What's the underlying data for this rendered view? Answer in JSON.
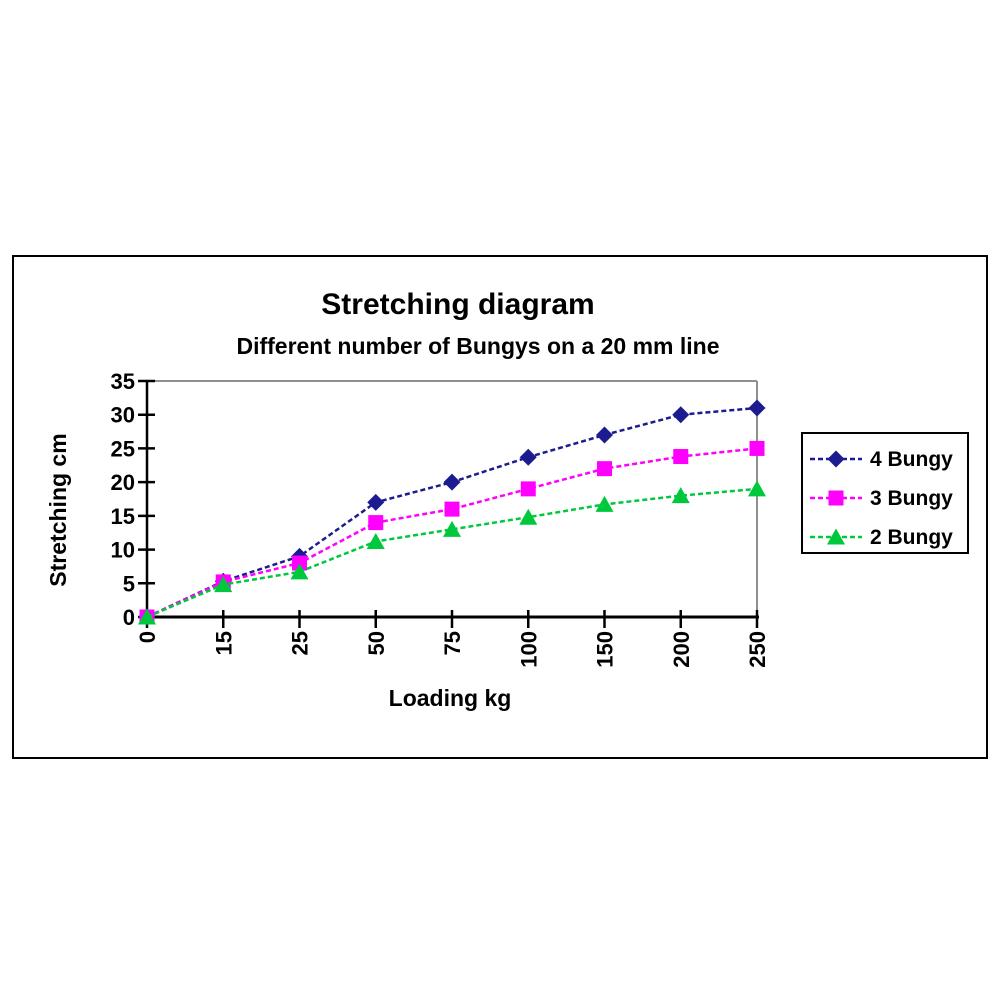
{
  "page": {
    "background": "#FFFFFF"
  },
  "chart_frame": {
    "border_color": "#000000"
  },
  "chart_data": {
    "type": "line",
    "title": "Stretching diagram",
    "subtitle": "Different number of Bungys on a 20 mm line",
    "xlabel": "Loading kg",
    "ylabel": "Stretching cm",
    "categories": [
      "0",
      "15",
      "25",
      "50",
      "75",
      "100",
      "150",
      "200",
      "250"
    ],
    "ylim": [
      0,
      35
    ],
    "y_ticks": [
      0,
      5,
      10,
      15,
      20,
      25,
      30,
      35
    ],
    "grid": false,
    "line_style": "dashed",
    "legend_position": "right",
    "colors": {
      "axis": "#000000",
      "plot_frame": "#8F8F8F",
      "legend_border": "#000000",
      "text": "#000000",
      "plot_background": "#FFFFFF"
    },
    "series": [
      {
        "name": "4 Bungy",
        "marker": "diamond",
        "color": "#1C1C90",
        "values": [
          0,
          5.3,
          9,
          17,
          20,
          23.7,
          27,
          30,
          31
        ]
      },
      {
        "name": "3 Bungy",
        "marker": "square",
        "color": "#FF00FF",
        "values": [
          0,
          5.2,
          8,
          14,
          16,
          19,
          22,
          23.8,
          25
        ]
      },
      {
        "name": "2 Bungy",
        "marker": "triangle",
        "color": "#00C83C",
        "values": [
          0,
          4.8,
          6.7,
          11.2,
          13,
          14.8,
          16.7,
          18,
          19
        ]
      }
    ]
  }
}
